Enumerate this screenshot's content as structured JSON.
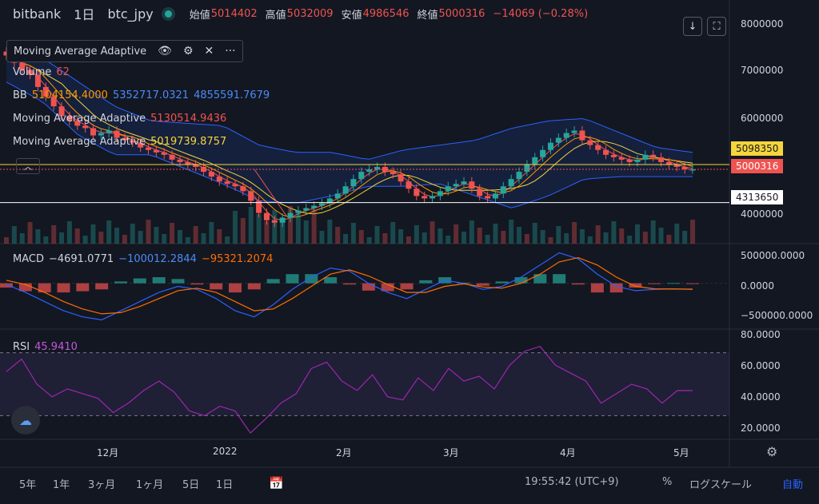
{
  "header": {
    "exchange": "bitbank",
    "interval": "1日",
    "pair": "btc_jpy",
    "open_label": "始値",
    "open": "5014402",
    "high_label": "高値",
    "high": "5032009",
    "low_label": "安値",
    "low": "4986546",
    "close_label": "終値",
    "close": "5000316",
    "change": "−14069 (−0.28%)"
  },
  "toolbar": {
    "download_icon": "arrow-down-icon",
    "fullscreen_icon": "fullscreen-icon"
  },
  "legend": {
    "maa_title": "Moving Average Adaptive",
    "volume_label": "Volume",
    "volume_value": "62",
    "bb_label": "BB",
    "bb_basis": "5104154.4000",
    "bb_upper": "5352717.0321",
    "bb_lower": "4855591.7679",
    "ma1_label": "Moving Average Adaptive",
    "ma1_value": "5130514.9436",
    "ma2_label": "Moving Average Adaptive",
    "ma2_value": "5019739.8757",
    "macd_label": "MACD",
    "macd_hist": "−4691.0771",
    "macd_macd": "−100012.2844",
    "macd_signal": "−95321.2074",
    "rsi_label": "RSI",
    "rsi_value": "45.9410"
  },
  "price_labels": {
    "ma_label": "5098350",
    "close_label": "5000316",
    "line_label": "4313650"
  },
  "price_axis": [
    "8000000",
    "7000000",
    "6000000",
    "5000000",
    "4000000"
  ],
  "macd_axis": [
    "500000.0000",
    "0.0000",
    "−500000.0000"
  ],
  "rsi_axis": [
    "80.0000",
    "60.0000",
    "40.0000",
    "20.0000"
  ],
  "time_axis": [
    "12月",
    "2022",
    "2月",
    "3月",
    "4月",
    "5月"
  ],
  "bottom_bar": {
    "ranges": [
      "5年",
      "1年",
      "3ヶ月",
      "1ヶ月",
      "5日",
      "1日"
    ],
    "clock": "19:55:42 (UTC+9)",
    "percent": "%",
    "log": "ログスケール",
    "auto": "自動"
  },
  "colors": {
    "up": "#26a69a",
    "down": "#ef5350",
    "bb_band": "#2962ff",
    "ma_red": "#ef5350",
    "ma_yellow": "#f5d53b",
    "macd": "#2962ff",
    "signal": "#ff6d00",
    "rsi": "#9c27b0"
  },
  "chart_data": [
    {
      "type": "candlestick",
      "title": "bitbank 1日 btc_jpy",
      "ylim": [
        3550000,
        8000000
      ],
      "x_ticks": [
        "12月",
        "2022",
        "2月",
        "3月",
        "4月",
        "5月"
      ],
      "close": [
        7350000,
        7200000,
        7050000,
        6950000,
        6700000,
        6500000,
        6300000,
        6100000,
        6000000,
        5900000,
        5850000,
        5700000,
        5750000,
        5800000,
        5650000,
        5600000,
        5550000,
        5450000,
        5400000,
        5350000,
        5300000,
        5200000,
        5150000,
        5100000,
        5050000,
        4950000,
        4850000,
        4750000,
        4700000,
        4650000,
        4550000,
        4350000,
        4100000,
        3950000,
        3900000,
        4000000,
        4100000,
        4150000,
        4200000,
        4250000,
        4300000,
        4400000,
        4500000,
        4650000,
        4800000,
        4950000,
        5000000,
        5050000,
        4950000,
        4900000,
        4750000,
        4600000,
        4450000,
        4400000,
        4450000,
        4550000,
        4650000,
        4700000,
        4750000,
        4600000,
        4450000,
        4400000,
        4500000,
        4650000,
        4800000,
        4950000,
        5100000,
        5250000,
        5400000,
        5550000,
        5650000,
        5750000,
        5800000,
        5600000,
        5500000,
        5400000,
        5300000,
        5250000,
        5200000,
        5150000,
        5200000,
        5300000,
        5250000,
        5150000,
        5100000,
        5050000,
        5000000,
        5000316
      ],
      "upper_band_approx": [
        7600000,
        7300000,
        6800000,
        6300000,
        6000000,
        5950000,
        5900000,
        5500000,
        5350000,
        5350000,
        5200000,
        5400000,
        5500000,
        5600000,
        5850000,
        6000000,
        6050000,
        5750000,
        5450000,
        5350000
      ],
      "lower_band_approx": [
        6800000,
        6400000,
        5700000,
        5300000,
        5300000,
        5000000,
        4700000,
        4350000,
        4300000,
        4450000,
        4650000,
        4650000,
        4700000,
        4450000,
        4200000,
        4450000,
        4800000,
        4850000,
        4850000,
        4850000
      ],
      "horizontal_lines": [
        5098350,
        5000316,
        4313650
      ]
    },
    {
      "type": "line",
      "title": "MACD",
      "ylim": [
        -750000,
        650000
      ],
      "series": [
        {
          "name": "MACD",
          "values": [
            -20000,
            -150000,
            -300000,
            -450000,
            -550000,
            -600000,
            -450000,
            -300000,
            -150000,
            -50000,
            -100000,
            -250000,
            -450000,
            -550000,
            -350000,
            -100000,
            100000,
            250000,
            200000,
            0,
            -150000,
            -250000,
            -100000,
            50000,
            0,
            -100000,
            -50000,
            100000,
            300000,
            500000,
            400000,
            150000,
            -50000,
            -120000,
            -100000,
            -90000,
            -100012
          ]
        },
        {
          "name": "Signal",
          "values": [
            50000,
            -20000,
            -150000,
            -300000,
            -420000,
            -500000,
            -480000,
            -380000,
            -250000,
            -120000,
            -80000,
            -150000,
            -300000,
            -450000,
            -420000,
            -250000,
            -50000,
            150000,
            220000,
            120000,
            -20000,
            -150000,
            -150000,
            -50000,
            -10000,
            -60000,
            -80000,
            0,
            150000,
            350000,
            420000,
            300000,
            100000,
            -50000,
            -90000,
            -95000,
            -95321
          ]
        }
      ]
    },
    {
      "type": "line",
      "title": "RSI",
      "ylim": [
        15,
        85
      ],
      "series": [
        {
          "name": "RSI",
          "values": [
            58,
            66,
            50,
            42,
            47,
            44,
            41,
            32,
            38,
            46,
            52,
            45,
            33,
            30,
            36,
            33,
            19,
            28,
            38,
            44,
            60,
            64,
            52,
            46,
            56,
            42,
            40,
            54,
            46,
            60,
            52,
            55,
            47,
            62,
            71,
            74,
            62,
            57,
            52,
            38,
            44,
            50,
            47,
            38,
            46,
            45.941
          ]
        }
      ],
      "levels": [
        70,
        30
      ]
    }
  ]
}
